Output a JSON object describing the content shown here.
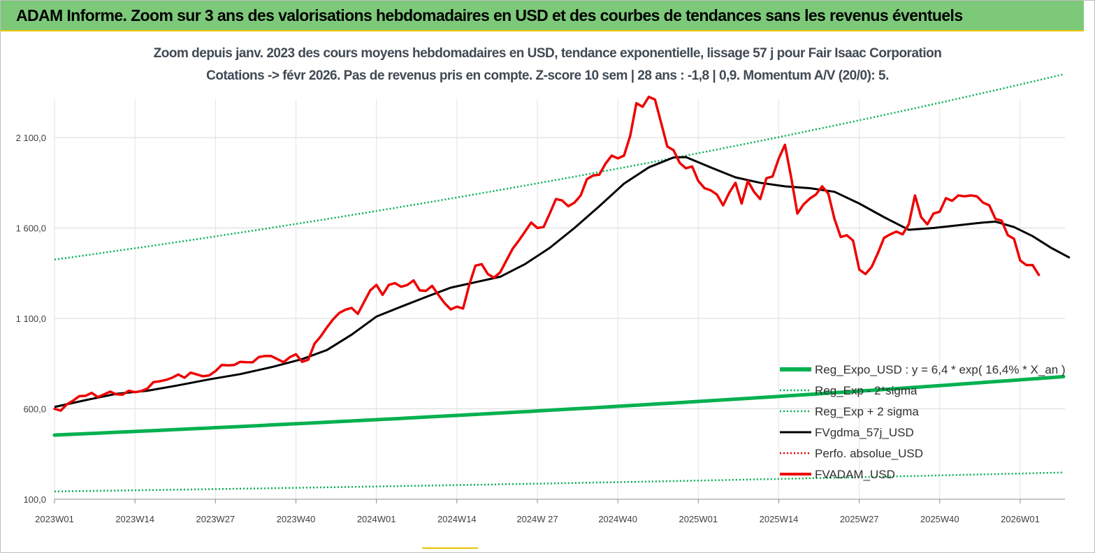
{
  "banner": {
    "title": "ADAM Informe. Zoom sur 3 ans des valorisations hebdomadaires en USD et des courbes de tendances sans les revenus éventuels"
  },
  "subtitle": {
    "line1": "Zoom depuis janv. 2023 des cours moyens hebdomadaires en USD, tendance exponentielle, lissage 57 j pour Fair Isaac Corporation",
    "line2": "Cotations -> févr 2026.  Pas de revenus pris en compte. Z-score 10 sem  | 28 ans : -1,8 | 0,9. Momentum A/V (20/0): 5."
  },
  "chart_data": {
    "type": "line",
    "x_range": [
      0,
      163
    ],
    "y_range": [
      100,
      2400
    ],
    "y_ticks": [
      {
        "value": 100,
        "label": "100,0"
      },
      {
        "value": 1100,
        "label": "1 100,0"
      },
      {
        "value": 1600,
        "label": "1 600,0"
      },
      {
        "value": 2100,
        "label": "2 100,0"
      }
    ],
    "x_ticks": [
      {
        "index": 0,
        "label": "2023W01"
      },
      {
        "index": 13,
        "label": "2023W14"
      },
      {
        "index": 26,
        "label": "2023W27"
      },
      {
        "index": 39,
        "label": "2023W40"
      },
      {
        "index": 52,
        "label": "2024W01"
      },
      {
        "index": 65,
        "label": "2024W14"
      },
      {
        "index": 78,
        "label": "2024W 27"
      },
      {
        "index": 91,
        "label": "2024W40"
      },
      {
        "index": 104,
        "label": "2025W01"
      },
      {
        "index": 117,
        "label": "2025W14"
      },
      {
        "index": 130,
        "label": "2025W27"
      },
      {
        "index": 143,
        "label": "2025W40"
      },
      {
        "index": 156,
        "label": "2026W01"
      }
    ],
    "series": [
      {
        "name": "Reg_Expo_USD : y = 6,4 * exp( 16,4% *  X_an )",
        "color": "#00b050",
        "style": "solid-thick",
        "points": [
          [
            0,
            455
          ],
          [
            163,
            778
          ]
        ]
      },
      {
        "name": "Reg_Exp - 2*sigma",
        "color": "#00b050",
        "style": "dotted",
        "points": [
          [
            0,
            143
          ],
          [
            163,
            248
          ]
        ]
      },
      {
        "name": "Reg_Exp + 2 sigma",
        "color": "#00b050",
        "style": "dotted",
        "points": [
          [
            0,
            1425
          ],
          [
            163,
            2450
          ]
        ]
      },
      {
        "name": "FVgdma_57j_USD",
        "color": "#000000",
        "style": "solid",
        "points": [
          [
            0,
            610
          ],
          [
            5,
            648
          ],
          [
            10,
            683
          ],
          [
            15,
            700
          ],
          [
            20,
            730
          ],
          [
            25,
            763
          ],
          [
            30,
            792
          ],
          [
            35,
            830
          ],
          [
            40,
            875
          ],
          [
            44,
            925
          ],
          [
            48,
            1010
          ],
          [
            52,
            1110
          ],
          [
            56,
            1165
          ],
          [
            60,
            1218
          ],
          [
            64,
            1270
          ],
          [
            68,
            1300
          ],
          [
            72,
            1330
          ],
          [
            76,
            1400
          ],
          [
            80,
            1490
          ],
          [
            84,
            1600
          ],
          [
            88,
            1720
          ],
          [
            92,
            1845
          ],
          [
            96,
            1935
          ],
          [
            100,
            1990
          ],
          [
            102,
            1992
          ],
          [
            106,
            1935
          ],
          [
            110,
            1880
          ],
          [
            114,
            1850
          ],
          [
            118,
            1830
          ],
          [
            122,
            1820
          ],
          [
            126,
            1800
          ],
          [
            130,
            1735
          ],
          [
            134,
            1660
          ],
          [
            138,
            1590
          ],
          [
            142,
            1600
          ],
          [
            146,
            1615
          ],
          [
            150,
            1630
          ],
          [
            152,
            1635
          ],
          [
            155,
            1605
          ],
          [
            158,
            1555
          ],
          [
            161,
            1490
          ],
          [
            164,
            1435
          ]
        ]
      },
      {
        "name": "Perfo. absolue_USD",
        "color": "#e00000",
        "style": "dotted",
        "points": []
      },
      {
        "name": "FVADAM_USD",
        "color": "#ee0000",
        "style": "solid-thick",
        "points": [
          [
            0,
            600
          ],
          [
            1,
            590
          ],
          [
            2,
            625
          ],
          [
            3,
            645
          ],
          [
            4,
            670
          ],
          [
            5,
            672
          ],
          [
            6,
            688
          ],
          [
            7,
            665
          ],
          [
            8,
            680
          ],
          [
            9,
            695
          ],
          [
            10,
            680
          ],
          [
            11,
            678
          ],
          [
            12,
            700
          ],
          [
            13,
            692
          ],
          [
            14,
            698
          ],
          [
            15,
            712
          ],
          [
            16,
            748
          ],
          [
            17,
            752
          ],
          [
            18,
            760
          ],
          [
            19,
            772
          ],
          [
            20,
            790
          ],
          [
            21,
            772
          ],
          [
            22,
            800
          ],
          [
            23,
            790
          ],
          [
            24,
            780
          ],
          [
            25,
            785
          ],
          [
            26,
            808
          ],
          [
            27,
            842
          ],
          [
            28,
            840
          ],
          [
            29,
            842
          ],
          [
            30,
            860
          ],
          [
            31,
            858
          ],
          [
            32,
            857
          ],
          [
            33,
            886
          ],
          [
            34,
            892
          ],
          [
            35,
            892
          ],
          [
            36,
            875
          ],
          [
            37,
            858
          ],
          [
            38,
            885
          ],
          [
            39,
            902
          ],
          [
            40,
            860
          ],
          [
            41,
            872
          ],
          [
            42,
            960
          ],
          [
            43,
            1000
          ],
          [
            44,
            1050
          ],
          [
            45,
            1095
          ],
          [
            46,
            1130
          ],
          [
            47,
            1148
          ],
          [
            48,
            1158
          ],
          [
            49,
            1125
          ],
          [
            50,
            1190
          ],
          [
            51,
            1255
          ],
          [
            52,
            1285
          ],
          [
            53,
            1230
          ],
          [
            54,
            1285
          ],
          [
            55,
            1295
          ],
          [
            56,
            1275
          ],
          [
            57,
            1285
          ],
          [
            58,
            1310
          ],
          [
            59,
            1255
          ],
          [
            60,
            1252
          ],
          [
            61,
            1280
          ],
          [
            62,
            1230
          ],
          [
            63,
            1185
          ],
          [
            64,
            1150
          ],
          [
            65,
            1165
          ],
          [
            66,
            1155
          ],
          [
            67,
            1285
          ],
          [
            68,
            1392
          ],
          [
            69,
            1400
          ],
          [
            70,
            1345
          ],
          [
            71,
            1325
          ],
          [
            72,
            1355
          ],
          [
            73,
            1420
          ],
          [
            74,
            1485
          ],
          [
            75,
            1530
          ],
          [
            76,
            1580
          ],
          [
            77,
            1630
          ],
          [
            78,
            1600
          ],
          [
            79,
            1605
          ],
          [
            80,
            1680
          ],
          [
            81,
            1760
          ],
          [
            82,
            1752
          ],
          [
            83,
            1720
          ],
          [
            84,
            1740
          ],
          [
            85,
            1780
          ],
          [
            86,
            1870
          ],
          [
            87,
            1890
          ],
          [
            88,
            1895
          ],
          [
            89,
            1955
          ],
          [
            90,
            2000
          ],
          [
            91,
            1985
          ],
          [
            92,
            2000
          ],
          [
            93,
            2110
          ],
          [
            94,
            2290
          ],
          [
            95,
            2270
          ],
          [
            96,
            2325
          ],
          [
            97,
            2310
          ],
          [
            98,
            2180
          ],
          [
            99,
            2050
          ],
          [
            100,
            2030
          ],
          [
            101,
            1960
          ],
          [
            102,
            1930
          ],
          [
            103,
            1940
          ],
          [
            104,
            1860
          ],
          [
            105,
            1820
          ],
          [
            106,
            1808
          ],
          [
            107,
            1785
          ],
          [
            108,
            1725
          ],
          [
            109,
            1795
          ],
          [
            110,
            1850
          ],
          [
            111,
            1735
          ],
          [
            112,
            1860
          ],
          [
            113,
            1800
          ],
          [
            114,
            1760
          ],
          [
            115,
            1875
          ],
          [
            116,
            1885
          ],
          [
            117,
            1985
          ],
          [
            118,
            2060
          ],
          [
            119,
            1880
          ],
          [
            120,
            1680
          ],
          [
            121,
            1730
          ],
          [
            122,
            1762
          ],
          [
            123,
            1785
          ],
          [
            124,
            1830
          ],
          [
            125,
            1790
          ],
          [
            126,
            1650
          ],
          [
            127,
            1550
          ],
          [
            128,
            1560
          ],
          [
            129,
            1530
          ],
          [
            130,
            1370
          ],
          [
            131,
            1345
          ],
          [
            132,
            1385
          ],
          [
            133,
            1460
          ],
          [
            134,
            1545
          ],
          [
            135,
            1565
          ],
          [
            136,
            1580
          ],
          [
            137,
            1565
          ],
          [
            138,
            1620
          ],
          [
            139,
            1780
          ],
          [
            140,
            1660
          ],
          [
            141,
            1620
          ],
          [
            142,
            1680
          ],
          [
            143,
            1690
          ],
          [
            144,
            1765
          ],
          [
            145,
            1750
          ],
          [
            146,
            1780
          ],
          [
            147,
            1775
          ],
          [
            148,
            1780
          ],
          [
            149,
            1775
          ],
          [
            150,
            1740
          ],
          [
            151,
            1725
          ],
          [
            152,
            1650
          ],
          [
            153,
            1640
          ],
          [
            154,
            1560
          ],
          [
            155,
            1540
          ],
          [
            156,
            1420
          ],
          [
            157,
            1395
          ],
          [
            158,
            1395
          ],
          [
            159,
            1340
          ]
        ]
      }
    ],
    "legend_position": "bottom-right",
    "grid": true
  }
}
